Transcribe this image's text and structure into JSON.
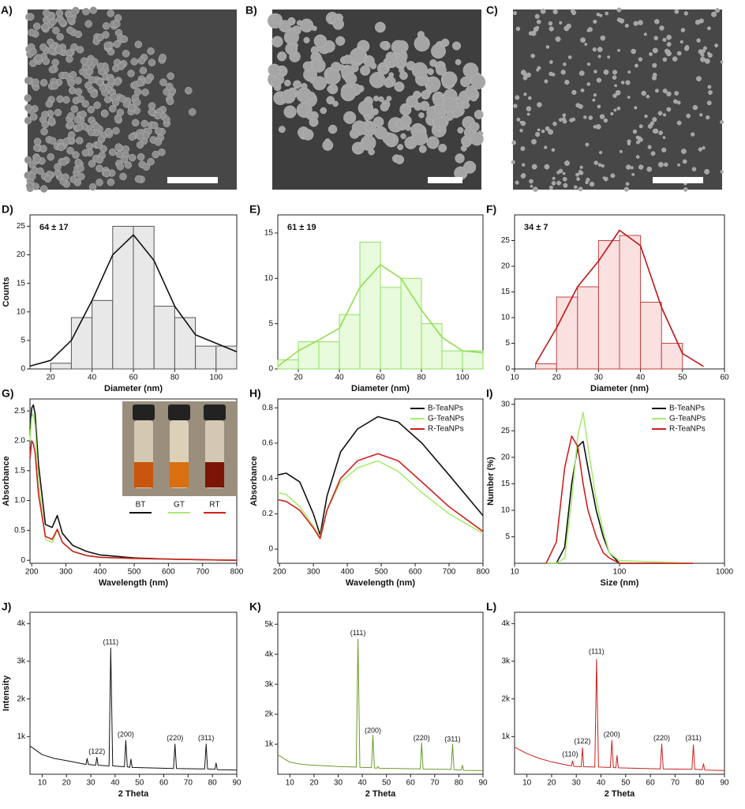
{
  "image_labels": [
    "A)",
    "B)",
    "C)"
  ],
  "chart_data": [
    {
      "type": "histogram",
      "label": "D)",
      "annotation": "64 ± 17",
      "xlabel": "Diameter (nm)",
      "ylabel": "Counts",
      "bins": [
        10,
        20,
        30,
        40,
        50,
        60,
        70,
        80,
        90,
        100,
        110
      ],
      "counts": [
        0,
        1,
        9,
        12,
        25,
        25,
        11,
        9,
        4,
        4
      ],
      "fit": {
        "x": [
          10,
          20,
          30,
          40,
          50,
          60,
          70,
          80,
          90,
          100,
          110
        ],
        "values": [
          0.5,
          1.5,
          5,
          12,
          20,
          23.5,
          19,
          11,
          6,
          4.5,
          3
        ]
      },
      "color": "#e8e8e8",
      "edge": "#555555",
      "fit_color": "#111111",
      "xlim": [
        10,
        110
      ],
      "xticks": [
        20,
        40,
        60,
        80,
        100
      ],
      "ylim": [
        0,
        27
      ],
      "yticks": [
        0,
        5,
        10,
        15,
        20,
        25
      ]
    },
    {
      "type": "histogram",
      "label": "E)",
      "annotation": "61 ± 19",
      "xlabel": "Diameter (nm)",
      "bins": [
        10,
        20,
        30,
        40,
        50,
        60,
        70,
        80,
        90,
        100,
        110
      ],
      "counts": [
        1,
        3,
        3,
        6,
        14,
        9,
        10,
        5,
        2,
        2
      ],
      "fit": {
        "x": [
          10,
          20,
          30,
          40,
          50,
          60,
          70,
          80,
          90,
          100,
          110
        ],
        "values": [
          0.3,
          2,
          3.2,
          4.5,
          9,
          11.5,
          10,
          6.5,
          3.5,
          2,
          1.8
        ]
      },
      "color": "#e8fbdc",
      "edge": "#8fe060",
      "fit_color": "#8fe050",
      "xlim": [
        10,
        110
      ],
      "xticks": [
        20,
        40,
        60,
        80,
        100
      ],
      "ylim": [
        0,
        17
      ],
      "yticks": [
        0,
        5,
        10,
        15
      ]
    },
    {
      "type": "histogram",
      "label": "F)",
      "annotation": "34 ± 7",
      "xlabel": "Diameter (nm)",
      "bins": [
        15,
        20,
        25,
        30,
        35,
        40,
        45,
        50
      ],
      "counts": [
        1,
        14,
        16,
        25,
        26,
        13,
        5
      ],
      "fit": {
        "x": [
          15,
          20,
          25,
          30,
          35,
          40,
          45,
          50,
          55
        ],
        "values": [
          1,
          8,
          16,
          21,
          27,
          24,
          12,
          3,
          0.5
        ]
      },
      "color": "#fbe0e0",
      "edge": "#c04545",
      "fit_color": "#c01515",
      "xlim": [
        10,
        60
      ],
      "xticks": [
        10,
        20,
        30,
        40,
        50,
        60
      ],
      "ylim": [
        0,
        30
      ],
      "yticks": [
        0,
        5,
        10,
        15,
        20,
        25
      ]
    },
    {
      "type": "line",
      "label": "G)",
      "xlabel": "Wavelength (nm)",
      "ylabel": "Absorbance",
      "inset_labels": [
        "BT",
        "GT",
        "RT"
      ],
      "x": [
        195,
        200,
        205,
        210,
        220,
        240,
        260,
        275,
        290,
        320,
        360,
        400,
        500,
        600,
        700,
        800
      ],
      "series": [
        {
          "name": "B-TeaNPs",
          "color": "#111111",
          "values": [
            2.2,
            2.55,
            2.6,
            2.45,
            1.6,
            0.6,
            0.55,
            0.75,
            0.45,
            0.25,
            0.15,
            0.09,
            0.04,
            0.02,
            0.01,
            0
          ]
        },
        {
          "name": "G-TeaNPs",
          "color": "#a8ec70",
          "values": [
            2.0,
            2.4,
            2.45,
            2.25,
            1.3,
            0.35,
            0.3,
            0.5,
            0.3,
            0.15,
            0.08,
            0.05,
            0.03,
            0.02,
            0.01,
            0
          ]
        },
        {
          "name": "R-TeaNPs",
          "color": "#d02020",
          "values": [
            1.7,
            2.0,
            1.95,
            1.8,
            1.1,
            0.4,
            0.35,
            0.52,
            0.3,
            0.15,
            0.08,
            0.05,
            0.03,
            0.02,
            0.01,
            0
          ]
        }
      ],
      "xlim": [
        195,
        800
      ],
      "xticks": [
        200,
        300,
        400,
        500,
        600,
        700,
        800
      ],
      "ylim": [
        -0.05,
        2.7
      ],
      "yticks": [
        0,
        0.5,
        {
          "value": 1,
          "label": "1.0"
        },
        1.5,
        {
          "value": 2,
          "label": "2.0"
        },
        2.5
      ],
      "legend": false
    },
    {
      "type": "line",
      "label": "H)",
      "xlabel": "Wavelength (nm)",
      "ylabel": "Absorbance",
      "x": [
        195,
        220,
        260,
        300,
        320,
        340,
        380,
        430,
        490,
        550,
        620,
        700,
        800
      ],
      "series": [
        {
          "name": "B-TeaNPs",
          "color": "#111111",
          "values": [
            0.42,
            0.43,
            0.38,
            0.2,
            0.08,
            0.3,
            0.55,
            0.68,
            0.75,
            0.72,
            0.6,
            0.42,
            0.19
          ]
        },
        {
          "name": "G-TeaNPs",
          "color": "#a8ec70",
          "values": [
            0.32,
            0.31,
            0.24,
            0.13,
            0.07,
            0.22,
            0.38,
            0.46,
            0.5,
            0.44,
            0.32,
            0.2,
            0.09
          ]
        },
        {
          "name": "R-TeaNPs",
          "color": "#d02020",
          "values": [
            0.28,
            0.27,
            0.22,
            0.12,
            0.06,
            0.22,
            0.4,
            0.5,
            0.54,
            0.5,
            0.38,
            0.24,
            0.1
          ]
        }
      ],
      "xlim": [
        195,
        800
      ],
      "xticks": [
        200,
        300,
        400,
        500,
        600,
        700,
        800
      ],
      "ylim": [
        -0.08,
        0.85
      ],
      "yticks": [
        0,
        0.2,
        0.4,
        0.6,
        0.8
      ],
      "legend": "top-right"
    },
    {
      "type": "line",
      "label": "I)",
      "xlabel": "Size (nm)",
      "ylabel": "Number (%)",
      "xscale": "log",
      "x": [
        20,
        25,
        30,
        35,
        40,
        45,
        50,
        60,
        70,
        80,
        100,
        200,
        500
      ],
      "series": [
        {
          "name": "B-TeaNPs",
          "color": "#111111",
          "values": [
            0,
            0,
            3,
            15,
            22,
            23,
            18,
            10,
            5,
            2,
            0,
            0,
            0
          ]
        },
        {
          "name": "G-TeaNPs",
          "color": "#a8ec70",
          "values": [
            0,
            0,
            1,
            12,
            24,
            28.5,
            22,
            12,
            6,
            2,
            0.5,
            0.3,
            0
          ]
        },
        {
          "name": "R-TeaNPs",
          "color": "#d02020",
          "values": [
            0,
            4,
            18,
            24,
            22,
            15,
            10,
            5,
            2,
            1,
            0,
            0,
            0
          ]
        }
      ],
      "xlim": [
        10,
        1000
      ],
      "xticks": [
        10,
        100,
        1000
      ],
      "ylim": [
        0,
        31
      ],
      "yticks": [
        5,
        10,
        15,
        20,
        25,
        30
      ],
      "legend": "top-right"
    },
    {
      "type": "line",
      "label": "J)",
      "xlabel": "2 Theta",
      "ylabel": "Intensity",
      "x": [
        5,
        10,
        15,
        20,
        25,
        28,
        28.5,
        29,
        32,
        32.5,
        33,
        37.5,
        38.2,
        39,
        43.8,
        44.4,
        45,
        46,
        46.5,
        47,
        64,
        64.6,
        65.2,
        76.8,
        77.4,
        78,
        81,
        81.5,
        82,
        90
      ],
      "series": [
        {
          "color": "#111111",
          "values": [
            750,
            520,
            420,
            360,
            300,
            260,
            420,
            260,
            240,
            450,
            240,
            220,
            3350,
            220,
            200,
            900,
            200,
            180,
            400,
            180,
            150,
            800,
            150,
            140,
            800,
            140,
            130,
            300,
            120,
            110
          ]
        }
      ],
      "annotations": [
        {
          "text": "(122)",
          "x": 32.5,
          "y": 600
        },
        {
          "text": "(111)",
          "x": 38.2,
          "y": 3500
        },
        {
          "text": "(200)",
          "x": 44.4,
          "y": 1050
        },
        {
          "text": "(220)",
          "x": 64.6,
          "y": 950
        },
        {
          "text": "(311)",
          "x": 77.4,
          "y": 950
        }
      ],
      "xlim": [
        5,
        90
      ],
      "xticks": [
        10,
        20,
        30,
        40,
        50,
        60,
        70,
        80,
        90
      ],
      "ylim": [
        0,
        4300
      ],
      "yticks": [
        {
          "value": 1000,
          "label": "1k"
        },
        {
          "value": 2000,
          "label": "2k"
        },
        {
          "value": 3000,
          "label": "3k"
        },
        {
          "value": 4000,
          "label": "4k"
        }
      ]
    },
    {
      "type": "line",
      "label": "K)",
      "xlabel": "2 Theta",
      "x": [
        5,
        10,
        15,
        20,
        25,
        28,
        28.5,
        29,
        32,
        32.5,
        33,
        37.5,
        38.2,
        39,
        43.8,
        44.4,
        45,
        46,
        46.5,
        47,
        64,
        64.6,
        65.2,
        76.8,
        77.4,
        78,
        81,
        81.5,
        82,
        90
      ],
      "series": [
        {
          "color": "#6a9a2a",
          "values": [
            650,
            400,
            330,
            300,
            280,
            270,
            270,
            260,
            250,
            260,
            250,
            240,
            4500,
            230,
            220,
            1300,
            210,
            200,
            260,
            200,
            180,
            1050,
            170,
            160,
            1000,
            150,
            140,
            300,
            130,
            120
          ]
        }
      ],
      "annotations": [
        {
          "text": "(111)",
          "x": 38.2,
          "y": 4700
        },
        {
          "text": "(200)",
          "x": 44.4,
          "y": 1450
        },
        {
          "text": "(220)",
          "x": 64.6,
          "y": 1200
        },
        {
          "text": "(311)",
          "x": 77.4,
          "y": 1150
        }
      ],
      "xlim": [
        5,
        90
      ],
      "xticks": [
        10,
        20,
        30,
        40,
        50,
        60,
        70,
        80,
        90
      ],
      "ylim": [
        0,
        5400
      ],
      "yticks": [
        {
          "value": 1000,
          "label": "1k"
        },
        {
          "value": 2000,
          "label": "2k"
        },
        {
          "value": 3000,
          "label": "3k"
        },
        {
          "value": 4000,
          "label": "4k"
        },
        {
          "value": 5000,
          "label": "5k"
        }
      ]
    },
    {
      "type": "line",
      "label": "L)",
      "xlabel": "2 Theta",
      "x": [
        5,
        10,
        15,
        20,
        25,
        28,
        28.5,
        29,
        32,
        32.5,
        33,
        37.5,
        38.2,
        39,
        43.8,
        44.4,
        45,
        46,
        46.5,
        47,
        64,
        64.6,
        65.2,
        76.8,
        77.4,
        78,
        81,
        81.5,
        82,
        90
      ],
      "series": [
        {
          "color": "#c82020",
          "values": [
            720,
            550,
            420,
            330,
            260,
            220,
            350,
            210,
            200,
            700,
            200,
            190,
            3050,
            190,
            180,
            900,
            180,
            170,
            500,
            170,
            140,
            800,
            140,
            130,
            780,
            130,
            120,
            280,
            110,
            100
          ]
        }
      ],
      "annotations": [
        {
          "text": "(110)",
          "x": 27.5,
          "y": 520
        },
        {
          "text": "(122)",
          "x": 32.5,
          "y": 870
        },
        {
          "text": "(111)",
          "x": 38.2,
          "y": 3250
        },
        {
          "text": "(200)",
          "x": 44.4,
          "y": 1050
        },
        {
          "text": "(220)",
          "x": 64.6,
          "y": 950
        },
        {
          "text": "(311)",
          "x": 77.4,
          "y": 950
        }
      ],
      "xlim": [
        5,
        90
      ],
      "xticks": [
        10,
        20,
        30,
        40,
        50,
        60,
        70,
        80,
        90
      ],
      "ylim": [
        0,
        4300
      ],
      "yticks": [
        {
          "value": 1000,
          "label": "1k"
        },
        {
          "value": 2000,
          "label": "2k"
        },
        {
          "value": 3000,
          "label": "3k"
        },
        {
          "value": 4000,
          "label": "4k"
        }
      ]
    }
  ]
}
